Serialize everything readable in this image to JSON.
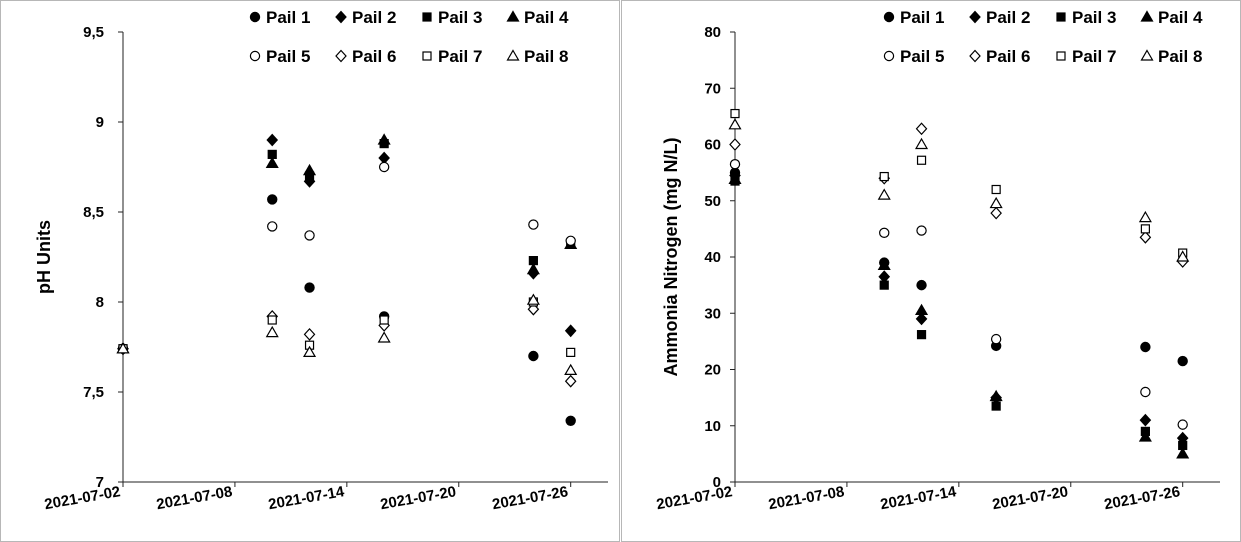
{
  "chart_data": [
    {
      "type": "scatter",
      "title": "",
      "xlabel": "",
      "ylabel": "pH Units",
      "ylim": [
        7,
        9.5
      ],
      "yticks": [
        "7",
        "7,5",
        "8",
        "8,5",
        "9",
        "9,5"
      ],
      "xlim": [
        "2021-07-02",
        "2021-07-28"
      ],
      "xticks": [
        "2021-07-02",
        "2021-07-08",
        "2021-07-14",
        "2021-07-20",
        "2021-07-26"
      ],
      "grid": false,
      "legend_position": "top-right",
      "series": [
        {
          "name": "Pail 1",
          "marker": "circle",
          "filled": true,
          "x": [
            "2021-07-02",
            "2021-07-10",
            "2021-07-12",
            "2021-07-16",
            "2021-07-24",
            "2021-07-26"
          ],
          "y": [
            7.74,
            8.57,
            8.08,
            7.92,
            7.7,
            7.34
          ]
        },
        {
          "name": "Pail 2",
          "marker": "diamond",
          "filled": true,
          "x": [
            "2021-07-02",
            "2021-07-10",
            "2021-07-12",
            "2021-07-16",
            "2021-07-24",
            "2021-07-26"
          ],
          "y": [
            7.74,
            8.9,
            8.67,
            8.8,
            8.16,
            7.84
          ]
        },
        {
          "name": "Pail 3",
          "marker": "square",
          "filled": true,
          "x": [
            "2021-07-02",
            "2021-07-10",
            "2021-07-12",
            "2021-07-16",
            "2021-07-24",
            "2021-07-26"
          ],
          "y": [
            7.74,
            8.82,
            8.7,
            8.88,
            8.23,
            8.32
          ]
        },
        {
          "name": "Pail 4",
          "marker": "triangle",
          "filled": true,
          "x": [
            "2021-07-02",
            "2021-07-10",
            "2021-07-12",
            "2021-07-16",
            "2021-07-24",
            "2021-07-26"
          ],
          "y": [
            7.74,
            8.77,
            8.73,
            8.9,
            8.18,
            8.32
          ]
        },
        {
          "name": "Pail 5",
          "marker": "circle",
          "filled": false,
          "x": [
            "2021-07-02",
            "2021-07-10",
            "2021-07-12",
            "2021-07-16",
            "2021-07-24",
            "2021-07-26"
          ],
          "y": [
            7.74,
            8.42,
            8.37,
            8.75,
            8.43,
            8.34
          ]
        },
        {
          "name": "Pail 6",
          "marker": "diamond",
          "filled": false,
          "x": [
            "2021-07-02",
            "2021-07-10",
            "2021-07-12",
            "2021-07-16",
            "2021-07-24",
            "2021-07-26"
          ],
          "y": [
            7.74,
            7.92,
            7.82,
            7.87,
            7.96,
            7.56
          ]
        },
        {
          "name": "Pail 7",
          "marker": "square",
          "filled": false,
          "x": [
            "2021-07-02",
            "2021-07-10",
            "2021-07-12",
            "2021-07-16",
            "2021-07-24",
            "2021-07-26"
          ],
          "y": [
            7.74,
            7.9,
            7.76,
            7.9,
            8.0,
            7.72
          ]
        },
        {
          "name": "Pail 8",
          "marker": "triangle",
          "filled": false,
          "x": [
            "2021-07-02",
            "2021-07-10",
            "2021-07-12",
            "2021-07-16",
            "2021-07-24",
            "2021-07-26"
          ],
          "y": [
            7.74,
            7.83,
            7.72,
            7.8,
            8.01,
            7.62
          ]
        }
      ]
    },
    {
      "type": "scatter",
      "title": "",
      "xlabel": "",
      "ylabel": "Ammonia Nitrogen (mg N/L)",
      "ylim": [
        0,
        80
      ],
      "yticks": [
        "0",
        "10",
        "20",
        "30",
        "40",
        "50",
        "60",
        "70",
        "80"
      ],
      "xlim": [
        "2021-07-02",
        "2021-07-28"
      ],
      "xticks": [
        "2021-07-02",
        "2021-07-08",
        "2021-07-14",
        "2021-07-20",
        "2021-07-26"
      ],
      "grid": false,
      "legend_position": "top-right",
      "series": [
        {
          "name": "Pail 1",
          "marker": "circle",
          "filled": true,
          "x": [
            "2021-07-02",
            "2021-07-10",
            "2021-07-12",
            "2021-07-16",
            "2021-07-24",
            "2021-07-26"
          ],
          "y": [
            55.0,
            39.0,
            35.0,
            24.2,
            24.0,
            21.5
          ]
        },
        {
          "name": "Pail 2",
          "marker": "diamond",
          "filled": true,
          "x": [
            "2021-07-02",
            "2021-07-10",
            "2021-07-12",
            "2021-07-16",
            "2021-07-24",
            "2021-07-26"
          ],
          "y": [
            54.5,
            36.5,
            29.0,
            15.0,
            11.0,
            7.8
          ]
        },
        {
          "name": "Pail 3",
          "marker": "square",
          "filled": true,
          "x": [
            "2021-07-02",
            "2021-07-10",
            "2021-07-12",
            "2021-07-16",
            "2021-07-24",
            "2021-07-26"
          ],
          "y": [
            53.5,
            35.0,
            26.2,
            13.5,
            9.0,
            6.5
          ]
        },
        {
          "name": "Pail 4",
          "marker": "triangle",
          "filled": true,
          "x": [
            "2021-07-02",
            "2021-07-10",
            "2021-07-12",
            "2021-07-16",
            "2021-07-24",
            "2021-07-26"
          ],
          "y": [
            53.8,
            38.5,
            30.5,
            15.2,
            8.0,
            5.0
          ]
        },
        {
          "name": "Pail 5",
          "marker": "circle",
          "filled": false,
          "x": [
            "2021-07-02",
            "2021-07-10",
            "2021-07-12",
            "2021-07-16",
            "2021-07-24",
            "2021-07-26"
          ],
          "y": [
            56.5,
            44.3,
            44.7,
            25.4,
            16.0,
            10.2
          ]
        },
        {
          "name": "Pail 6",
          "marker": "diamond",
          "filled": false,
          "x": [
            "2021-07-02",
            "2021-07-10",
            "2021-07-12",
            "2021-07-16",
            "2021-07-24",
            "2021-07-26"
          ],
          "y": [
            60.0,
            54.0,
            62.8,
            47.8,
            43.5,
            39.2
          ]
        },
        {
          "name": "Pail 7",
          "marker": "square",
          "filled": false,
          "x": [
            "2021-07-02",
            "2021-07-10",
            "2021-07-12",
            "2021-07-16",
            "2021-07-24",
            "2021-07-26"
          ],
          "y": [
            65.5,
            54.3,
            57.2,
            52.0,
            45.0,
            40.7
          ]
        },
        {
          "name": "Pail 8",
          "marker": "triangle",
          "filled": false,
          "x": [
            "2021-07-02",
            "2021-07-10",
            "2021-07-12",
            "2021-07-16",
            "2021-07-24",
            "2021-07-26"
          ],
          "y": [
            63.5,
            51.0,
            60.0,
            49.5,
            47.0,
            40.0
          ]
        }
      ]
    }
  ]
}
